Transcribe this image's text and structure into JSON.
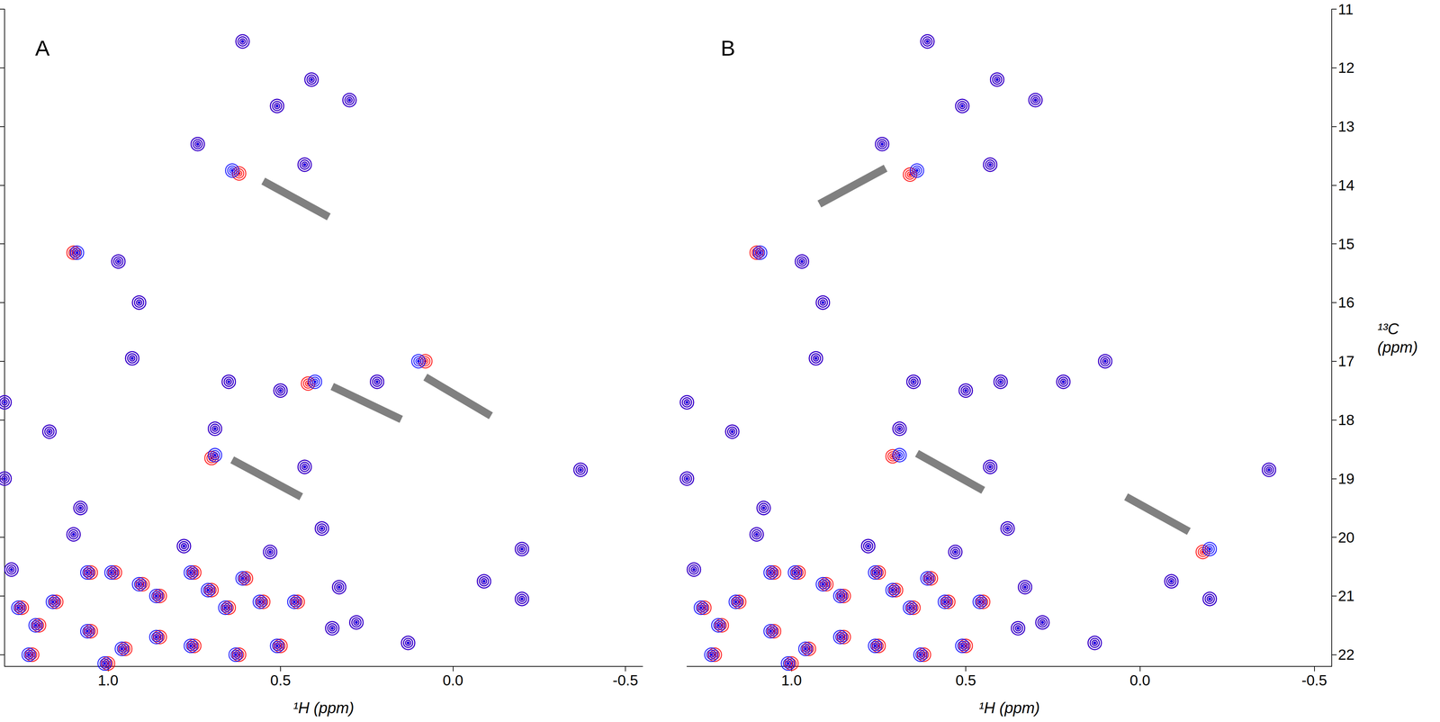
{
  "chart_data": [
    {
      "type": "scatter",
      "title": "A",
      "x_label": "¹H (ppm)",
      "xlim": [
        1.3,
        -0.55
      ],
      "ylim": [
        11,
        22.2
      ],
      "xticks": [
        {
          "value": 1.0,
          "label": "1.0"
        },
        0.5,
        {
          "value": 0.0,
          "label": "0.0"
        },
        -0.5
      ],
      "yticks": [
        11,
        12,
        13,
        14,
        15,
        16,
        17,
        18,
        19,
        20,
        21,
        22
      ],
      "grid": false,
      "tick_labels": "x",
      "marker": "circle",
      "series": [
        {
          "color": "#ff0000",
          "values": [
            [
              0.61,
              11.55
            ],
            [
              0.41,
              12.2
            ],
            [
              0.51,
              12.65
            ],
            [
              0.3,
              12.55
            ],
            [
              0.74,
              13.3
            ],
            [
              0.62,
              13.8
            ],
            [
              0.43,
              13.65
            ],
            [
              1.1,
              15.15
            ],
            [
              0.97,
              15.3
            ],
            [
              0.91,
              16.0
            ],
            [
              0.93,
              16.95
            ],
            [
              0.65,
              17.35
            ],
            [
              0.5,
              17.5
            ],
            [
              0.42,
              17.38
            ],
            [
              0.22,
              17.35
            ],
            [
              0.08,
              17.0
            ],
            [
              1.17,
              18.2
            ],
            [
              0.69,
              18.15
            ],
            [
              0.7,
              18.65
            ],
            [
              0.43,
              18.8
            ],
            [
              -0.37,
              18.85
            ],
            [
              1.08,
              19.5
            ],
            [
              1.1,
              19.95
            ],
            [
              0.38,
              19.85
            ],
            [
              0.78,
              20.15
            ],
            [
              0.53,
              20.25
            ],
            [
              -0.2,
              20.2
            ],
            [
              -0.09,
              20.75
            ],
            [
              -0.2,
              21.05
            ],
            [
              0.33,
              20.85
            ],
            [
              0.13,
              21.8
            ],
            [
              0.28,
              21.45
            ],
            [
              0.35,
              21.55
            ],
            [
              1.3,
              17.7
            ],
            [
              1.3,
              19.0
            ],
            [
              1.28,
              20.55
            ],
            [
              1.25,
              21.2
            ],
            [
              1.15,
              21.1
            ],
            [
              1.05,
              20.6
            ],
            [
              0.98,
              20.6
            ],
            [
              0.9,
              20.8
            ],
            [
              0.85,
              21.0
            ],
            [
              0.75,
              20.6
            ],
            [
              0.7,
              20.9
            ],
            [
              0.65,
              21.2
            ],
            [
              0.6,
              20.7
            ],
            [
              0.55,
              21.1
            ],
            [
              0.45,
              21.1
            ],
            [
              1.2,
              21.5
            ],
            [
              1.05,
              21.6
            ],
            [
              0.95,
              21.9
            ],
            [
              0.85,
              21.7
            ],
            [
              0.75,
              21.85
            ],
            [
              0.62,
              22.0
            ],
            [
              0.5,
              21.85
            ],
            [
              1.22,
              22.0
            ],
            [
              1.0,
              22.15
            ]
          ]
        },
        {
          "color": "#0000ff",
          "values": [
            [
              0.61,
              11.55
            ],
            [
              0.41,
              12.2
            ],
            [
              0.51,
              12.65
            ],
            [
              0.3,
              12.55
            ],
            [
              0.74,
              13.3
            ],
            [
              0.64,
              13.75
            ],
            [
              0.43,
              13.65
            ],
            [
              1.09,
              15.15
            ],
            [
              0.97,
              15.3
            ],
            [
              0.91,
              16.0
            ],
            [
              0.93,
              16.95
            ],
            [
              0.65,
              17.35
            ],
            [
              0.5,
              17.5
            ],
            [
              0.4,
              17.35
            ],
            [
              0.22,
              17.35
            ],
            [
              0.1,
              17.0
            ],
            [
              1.17,
              18.2
            ],
            [
              0.69,
              18.15
            ],
            [
              0.69,
              18.6
            ],
            [
              0.43,
              18.8
            ],
            [
              -0.37,
              18.85
            ],
            [
              1.08,
              19.5
            ],
            [
              1.1,
              19.95
            ],
            [
              0.38,
              19.85
            ],
            [
              0.78,
              20.15
            ],
            [
              0.53,
              20.25
            ],
            [
              -0.2,
              20.2
            ],
            [
              -0.09,
              20.75
            ],
            [
              -0.2,
              21.05
            ],
            [
              0.33,
              20.85
            ],
            [
              0.13,
              21.8
            ],
            [
              0.28,
              21.45
            ],
            [
              0.35,
              21.55
            ],
            [
              1.3,
              17.7
            ],
            [
              1.3,
              19.0
            ],
            [
              1.28,
              20.55
            ],
            [
              1.26,
              21.2
            ],
            [
              1.16,
              21.1
            ],
            [
              1.06,
              20.6
            ],
            [
              0.99,
              20.6
            ],
            [
              0.91,
              20.8
            ],
            [
              0.86,
              21.0
            ],
            [
              0.76,
              20.6
            ],
            [
              0.71,
              20.9
            ],
            [
              0.66,
              21.2
            ],
            [
              0.61,
              20.7
            ],
            [
              0.56,
              21.1
            ],
            [
              0.46,
              21.1
            ],
            [
              1.21,
              21.5
            ],
            [
              1.06,
              21.6
            ],
            [
              0.96,
              21.9
            ],
            [
              0.86,
              21.7
            ],
            [
              0.76,
              21.85
            ],
            [
              0.63,
              22.0
            ],
            [
              0.51,
              21.85
            ],
            [
              1.23,
              22.0
            ],
            [
              1.01,
              22.15
            ]
          ]
        }
      ],
      "arrows": [
        {
          "from": [
            0.36,
            14.54
          ],
          "to": [
            0.55,
            13.93
          ]
        },
        {
          "from": [
            0.15,
            17.99
          ],
          "to": [
            0.35,
            17.43
          ]
        },
        {
          "from": [
            -0.11,
            17.93
          ],
          "to": [
            0.08,
            17.27
          ]
        },
        {
          "from": [
            0.44,
            19.31
          ],
          "to": [
            0.64,
            18.68
          ]
        }
      ]
    },
    {
      "type": "scatter",
      "title": "B",
      "x_label": "¹H (ppm)",
      "y_label": "¹³C\n(ppm)",
      "xlim": [
        1.3,
        -0.55
      ],
      "ylim": [
        11,
        22.2
      ],
      "xticks": [
        {
          "value": 1.0,
          "label": "1.0"
        },
        0.5,
        {
          "value": 0.0,
          "label": "0.0"
        },
        -0.5
      ],
      "yticks": [
        11,
        12,
        13,
        14,
        15,
        16,
        17,
        18,
        19,
        20,
        21,
        22
      ],
      "grid": false,
      "tick_labels": true,
      "marker": "circle",
      "series": [
        {
          "color": "#ff0000",
          "values": [
            [
              0.61,
              11.55
            ],
            [
              0.41,
              12.2
            ],
            [
              0.51,
              12.65
            ],
            [
              0.3,
              12.55
            ],
            [
              0.74,
              13.3
            ],
            [
              0.66,
              13.82
            ],
            [
              0.43,
              13.65
            ],
            [
              1.1,
              15.15
            ],
            [
              0.97,
              15.3
            ],
            [
              0.91,
              16.0
            ],
            [
              0.93,
              16.95
            ],
            [
              0.65,
              17.35
            ],
            [
              0.5,
              17.5
            ],
            [
              0.4,
              17.35
            ],
            [
              0.22,
              17.35
            ],
            [
              0.1,
              17.0
            ],
            [
              1.17,
              18.2
            ],
            [
              0.69,
              18.15
            ],
            [
              0.71,
              18.62
            ],
            [
              0.43,
              18.8
            ],
            [
              -0.37,
              18.85
            ],
            [
              1.08,
              19.5
            ],
            [
              1.1,
              19.95
            ],
            [
              0.38,
              19.85
            ],
            [
              0.78,
              20.15
            ],
            [
              0.53,
              20.25
            ],
            [
              -0.18,
              20.25
            ],
            [
              -0.09,
              20.75
            ],
            [
              -0.2,
              21.05
            ],
            [
              0.33,
              20.85
            ],
            [
              0.13,
              21.8
            ],
            [
              0.28,
              21.45
            ],
            [
              0.35,
              21.55
            ],
            [
              1.3,
              17.7
            ],
            [
              1.3,
              19.0
            ],
            [
              1.28,
              20.55
            ],
            [
              1.25,
              21.2
            ],
            [
              1.15,
              21.1
            ],
            [
              1.05,
              20.6
            ],
            [
              0.98,
              20.6
            ],
            [
              0.9,
              20.8
            ],
            [
              0.85,
              21.0
            ],
            [
              0.75,
              20.6
            ],
            [
              0.7,
              20.9
            ],
            [
              0.65,
              21.2
            ],
            [
              0.6,
              20.7
            ],
            [
              0.55,
              21.1
            ],
            [
              0.45,
              21.1
            ],
            [
              1.2,
              21.5
            ],
            [
              1.05,
              21.6
            ],
            [
              0.95,
              21.9
            ],
            [
              0.85,
              21.7
            ],
            [
              0.75,
              21.85
            ],
            [
              0.62,
              22.0
            ],
            [
              0.5,
              21.85
            ],
            [
              1.22,
              22.0
            ],
            [
              1.0,
              22.15
            ]
          ]
        },
        {
          "color": "#0000ff",
          "values": [
            [
              0.61,
              11.55
            ],
            [
              0.41,
              12.2
            ],
            [
              0.51,
              12.65
            ],
            [
              0.3,
              12.55
            ],
            [
              0.74,
              13.3
            ],
            [
              0.64,
              13.75
            ],
            [
              0.43,
              13.65
            ],
            [
              1.09,
              15.15
            ],
            [
              0.97,
              15.3
            ],
            [
              0.91,
              16.0
            ],
            [
              0.93,
              16.95
            ],
            [
              0.65,
              17.35
            ],
            [
              0.5,
              17.5
            ],
            [
              0.4,
              17.35
            ],
            [
              0.22,
              17.35
            ],
            [
              0.1,
              17.0
            ],
            [
              1.17,
              18.2
            ],
            [
              0.69,
              18.15
            ],
            [
              0.69,
              18.6
            ],
            [
              0.43,
              18.8
            ],
            [
              -0.37,
              18.85
            ],
            [
              1.08,
              19.5
            ],
            [
              1.1,
              19.95
            ],
            [
              0.38,
              19.85
            ],
            [
              0.78,
              20.15
            ],
            [
              0.53,
              20.25
            ],
            [
              -0.2,
              20.2
            ],
            [
              -0.09,
              20.75
            ],
            [
              -0.2,
              21.05
            ],
            [
              0.33,
              20.85
            ],
            [
              0.13,
              21.8
            ],
            [
              0.28,
              21.45
            ],
            [
              0.35,
              21.55
            ],
            [
              1.3,
              17.7
            ],
            [
              1.3,
              19.0
            ],
            [
              1.28,
              20.55
            ],
            [
              1.26,
              21.2
            ],
            [
              1.16,
              21.1
            ],
            [
              1.06,
              20.6
            ],
            [
              0.99,
              20.6
            ],
            [
              0.91,
              20.8
            ],
            [
              0.86,
              21.0
            ],
            [
              0.76,
              20.6
            ],
            [
              0.71,
              20.9
            ],
            [
              0.66,
              21.2
            ],
            [
              0.61,
              20.7
            ],
            [
              0.56,
              21.1
            ],
            [
              0.46,
              21.1
            ],
            [
              1.21,
              21.5
            ],
            [
              1.06,
              21.6
            ],
            [
              0.96,
              21.9
            ],
            [
              0.86,
              21.7
            ],
            [
              0.76,
              21.85
            ],
            [
              0.63,
              22.0
            ],
            [
              0.51,
              21.85
            ],
            [
              1.23,
              22.0
            ],
            [
              1.01,
              22.15
            ]
          ]
        }
      ],
      "arrows": [
        {
          "from": [
            0.92,
            14.32
          ],
          "to": [
            0.73,
            13.71
          ]
        },
        {
          "from": [
            0.45,
            19.2
          ],
          "to": [
            0.64,
            18.57
          ]
        },
        {
          "from": [
            0.04,
            19.31
          ],
          "to": [
            -0.14,
            19.9
          ]
        }
      ]
    }
  ]
}
